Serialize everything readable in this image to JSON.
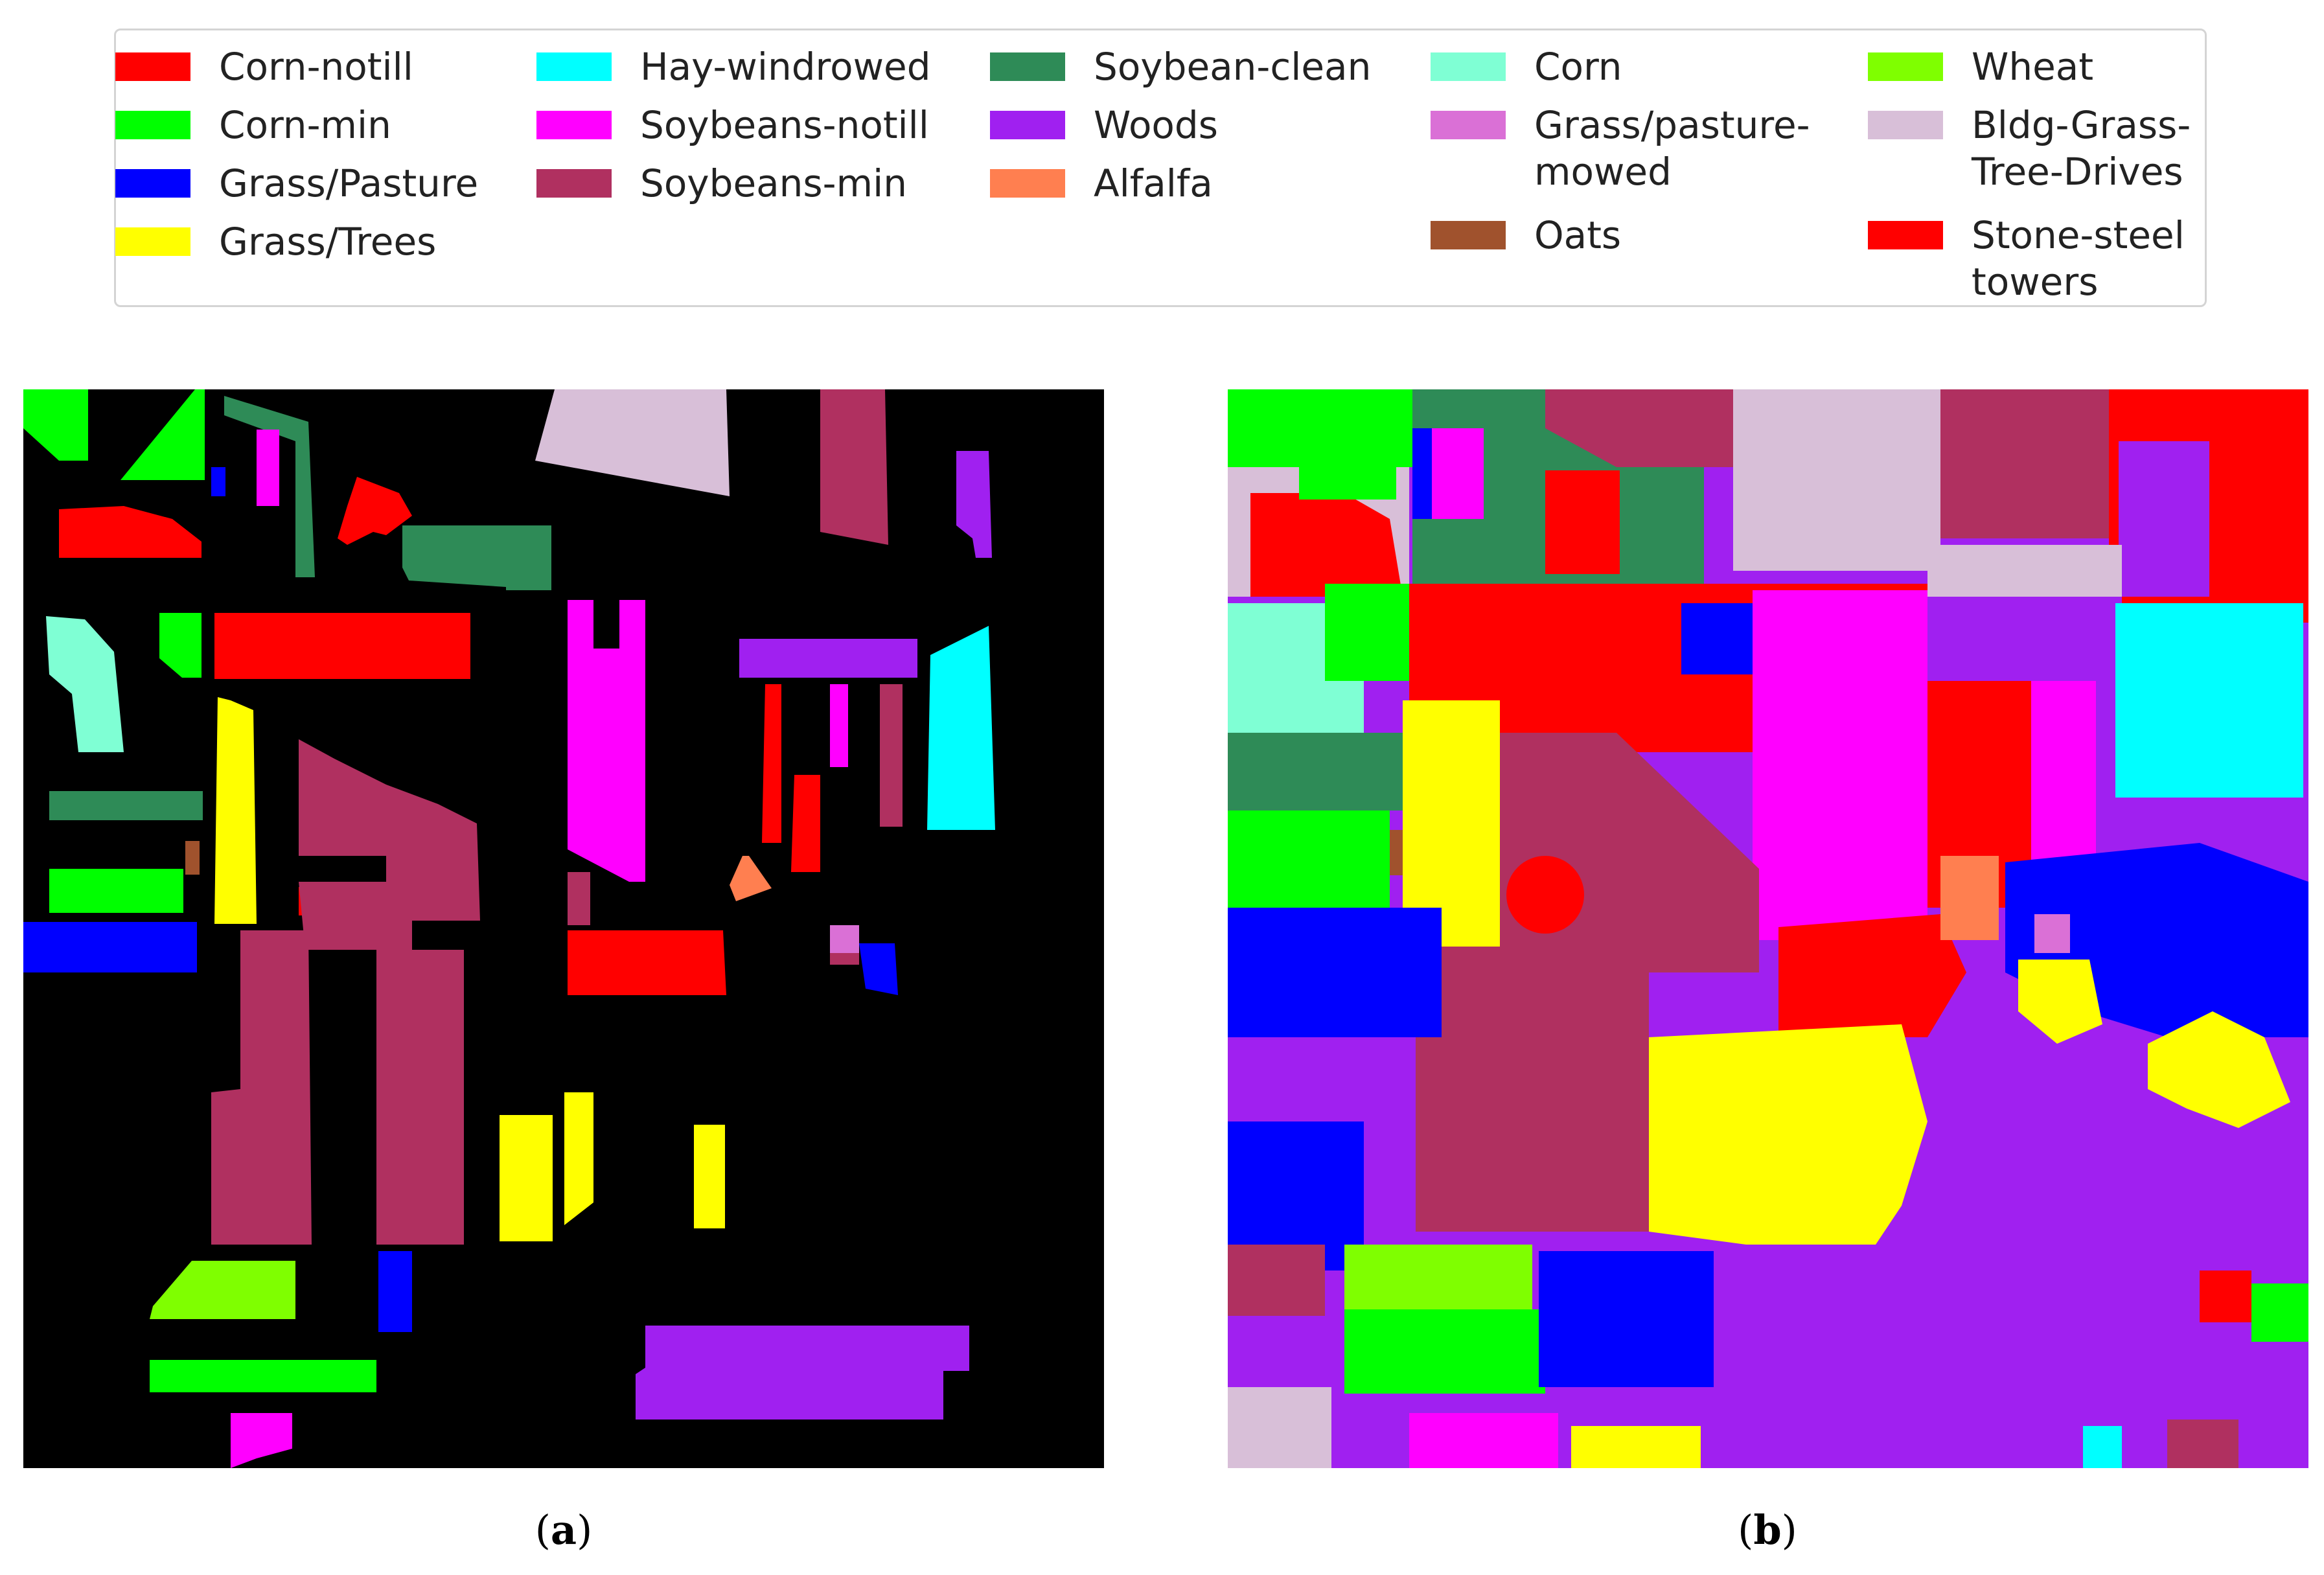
{
  "legend": {
    "items": [
      {
        "key": "corn_notill",
        "label": "Corn-notill",
        "color": "#ff0000"
      },
      {
        "key": "corn_min",
        "label": "Corn-min",
        "color": "#00ff00"
      },
      {
        "key": "grass_pasture",
        "label": "Grass/Pasture",
        "color": "#0000ff"
      },
      {
        "key": "grass_trees",
        "label": "Grass/Trees",
        "color": "#ffff00"
      },
      {
        "key": "hay_windrowed",
        "label": "Hay-windrowed",
        "color": "#00ffff"
      },
      {
        "key": "soybeans_notill",
        "label": "Soybeans-notill",
        "color": "#ff00ff"
      },
      {
        "key": "soybeans_min",
        "label": "Soybeans-min",
        "color": "#b03060"
      },
      {
        "key": "soybean_clean",
        "label": "Soybean-clean",
        "color": "#2e8b57"
      },
      {
        "key": "woods",
        "label": "Woods",
        "color": "#a020f0"
      },
      {
        "key": "alfalfa",
        "label": "Alfalfa",
        "color": "#ff7f50"
      },
      {
        "key": "corn",
        "label": "Corn",
        "color": "#7fffd4"
      },
      {
        "key": "grass_pasture_mowed",
        "label": "Grass/pasture-\nmowed",
        "color": "#da70d6"
      },
      {
        "key": "oats",
        "label": "Oats",
        "color": "#a0522d"
      },
      {
        "key": "wheat",
        "label": "Wheat",
        "color": "#7fff00"
      },
      {
        "key": "bldg_grass_tree_drives",
        "label": "Bldg-Grass-\nTree-Drives",
        "color": "#d8bfd8"
      },
      {
        "key": "stone_steel_towers",
        "label": "Stone-steel\ntowers",
        "color": "#ff0000"
      }
    ]
  },
  "panels": {
    "a": {
      "caption_letter": "a",
      "background": "#000000"
    },
    "b": {
      "caption_letter": "b",
      "background": "#a020f0"
    }
  },
  "captions": {
    "open": "(",
    "close": ")"
  }
}
